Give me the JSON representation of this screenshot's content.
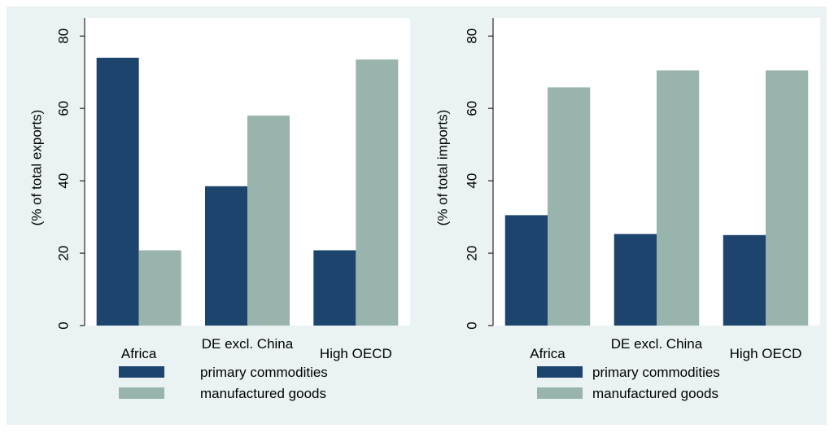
{
  "colors": {
    "figure_background": "#eaf2f3",
    "plot_background": "#ffffff",
    "axis": "#000000"
  },
  "chart_data": [
    {
      "type": "bar",
      "ylabel": "(% of total exports)",
      "ylim": [
        0,
        85
      ],
      "yticks": [
        0,
        20,
        40,
        60,
        80
      ],
      "categories": [
        "Africa",
        "DE excl. China",
        "High OECD"
      ],
      "series": [
        {
          "name": "primary commodities",
          "color": "#1d446c",
          "values": [
            74,
            38.5,
            20.8
          ]
        },
        {
          "name": "manufactured goods",
          "color": "#98b4ad",
          "values": [
            20.8,
            58,
            73.5
          ]
        }
      ],
      "grid": false,
      "legend_position": "bottom"
    },
    {
      "type": "bar",
      "ylabel": "(% of total imports)",
      "ylim": [
        0,
        85
      ],
      "yticks": [
        0,
        20,
        40,
        60,
        80
      ],
      "categories": [
        "Africa",
        "DE excl. China",
        "High OECD"
      ],
      "series": [
        {
          "name": "primary commodities",
          "color": "#1d446c",
          "values": [
            30.5,
            25.3,
            25
          ]
        },
        {
          "name": "manufactured goods",
          "color": "#98b4ad",
          "values": [
            65.8,
            70.5,
            70.5
          ]
        }
      ],
      "grid": false,
      "legend_position": "bottom"
    }
  ]
}
